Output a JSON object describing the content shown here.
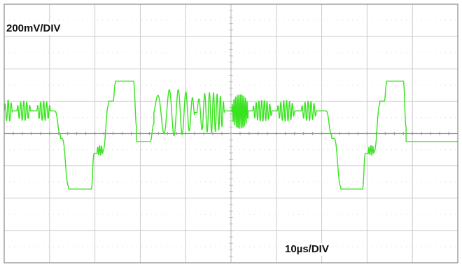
{
  "chart_data": {
    "type": "line",
    "title": "",
    "xlabel": "",
    "ylabel": "",
    "vertical_scale_label": "200mV/DIV",
    "horizontal_scale_label": "10µs/DIV",
    "grid": true,
    "divisions": {
      "x": 10,
      "y": 8
    },
    "trace_color": "#39e31f",
    "grid_color": "#c9c9c9",
    "border_color": "#8a8a8a",
    "xlim_div": [
      0,
      10
    ],
    "ylim_div": [
      -4,
      4
    ],
    "series": [
      {
        "segments_div": [
          {
            "kind": "burst",
            "x0": 0.0,
            "x1": 0.18,
            "base": 0.7,
            "amp": 0.33,
            "cycles": 2.6
          },
          {
            "kind": "hold",
            "x0": 0.18,
            "x1": 0.28,
            "y": 0.7
          },
          {
            "kind": "burst",
            "x0": 0.28,
            "x1": 0.58,
            "base": 0.7,
            "amp": 0.3,
            "cycles": 4.5
          },
          {
            "kind": "hold",
            "x0": 0.58,
            "x1": 0.72,
            "y": 0.7
          },
          {
            "kind": "burst",
            "x0": 0.72,
            "x1": 1.02,
            "base": 0.7,
            "amp": 0.3,
            "cycles": 4.5
          },
          {
            "kind": "hold",
            "x0": 1.02,
            "x1": 1.12,
            "y": 0.7
          },
          {
            "kind": "ramp",
            "x0": 1.12,
            "x1": 1.24,
            "y0": 0.7,
            "y1": -0.05
          },
          {
            "kind": "hold",
            "x0": 1.24,
            "x1": 1.28,
            "y": -0.15
          },
          {
            "kind": "ramp",
            "x0": 1.28,
            "x1": 1.42,
            "y0": -0.15,
            "y1": -1.65
          },
          {
            "kind": "hold",
            "x0": 1.42,
            "x1": 1.92,
            "y": -1.72
          },
          {
            "kind": "ramp",
            "x0": 1.92,
            "x1": 1.98,
            "y0": -1.72,
            "y1": -0.62
          },
          {
            "kind": "hold",
            "x0": 1.98,
            "x1": 2.05,
            "y": -0.62
          },
          {
            "kind": "burst",
            "x0": 2.05,
            "x1": 2.18,
            "base": -0.52,
            "amp": 0.15,
            "cycles": 3.0
          },
          {
            "kind": "ramp",
            "x0": 2.18,
            "x1": 2.3,
            "y0": -0.55,
            "y1": 0.9
          },
          {
            "kind": "hold",
            "x0": 2.3,
            "x1": 2.4,
            "y": 1.0
          },
          {
            "kind": "ramp",
            "x0": 2.4,
            "x1": 2.45,
            "y0": 1.0,
            "y1": 1.55
          },
          {
            "kind": "hold",
            "x0": 2.45,
            "x1": 2.85,
            "y": 1.62
          },
          {
            "kind": "ramp",
            "x0": 2.85,
            "x1": 2.92,
            "y0": 1.62,
            "y1": 0.2
          },
          {
            "kind": "hold",
            "x0": 2.92,
            "x1": 3.22,
            "y": -0.25
          },
          {
            "kind": "ramp",
            "x0": 3.22,
            "x1": 3.3,
            "y0": -0.25,
            "y1": 0.3
          },
          {
            "kind": "chirp",
            "x0": 3.3,
            "x1": 4.2,
            "base": 0.65,
            "amp": 0.72,
            "cycles": 4.6
          },
          {
            "kind": "chirp",
            "x0": 4.25,
            "x1": 4.85,
            "base": 0.65,
            "amp": 0.62,
            "cycles": 6.5
          },
          {
            "kind": "hold",
            "x0": 4.85,
            "x1": 5.02,
            "y": 0.7
          },
          {
            "kind": "burst",
            "x0": 5.02,
            "x1": 5.38,
            "base": 0.68,
            "amp": 0.52,
            "cycles": 10.0
          },
          {
            "kind": "hold",
            "x0": 5.38,
            "x1": 5.48,
            "y": 0.7
          },
          {
            "kind": "burst",
            "x0": 5.48,
            "x1": 5.9,
            "base": 0.7,
            "amp": 0.32,
            "cycles": 7.0
          },
          {
            "kind": "hold",
            "x0": 5.9,
            "x1": 6.02,
            "y": 0.7
          },
          {
            "kind": "burst",
            "x0": 6.02,
            "x1": 6.4,
            "base": 0.7,
            "amp": 0.32,
            "cycles": 6.0
          },
          {
            "kind": "hold",
            "x0": 6.4,
            "x1": 6.55,
            "y": 0.7
          },
          {
            "kind": "burst",
            "x0": 6.55,
            "x1": 6.88,
            "base": 0.7,
            "amp": 0.3,
            "cycles": 5.0
          },
          {
            "kind": "hold",
            "x0": 6.88,
            "x1": 7.1,
            "y": 0.7
          },
          {
            "kind": "ramp",
            "x0": 7.1,
            "x1": 7.22,
            "y0": 0.7,
            "y1": -0.05
          },
          {
            "kind": "hold",
            "x0": 7.22,
            "x1": 7.28,
            "y": -0.15
          },
          {
            "kind": "ramp",
            "x0": 7.28,
            "x1": 7.42,
            "y0": -0.15,
            "y1": -1.65
          },
          {
            "kind": "hold",
            "x0": 7.42,
            "x1": 7.9,
            "y": -1.72
          },
          {
            "kind": "ramp",
            "x0": 7.9,
            "x1": 7.96,
            "y0": -1.72,
            "y1": -0.62
          },
          {
            "kind": "hold",
            "x0": 7.96,
            "x1": 8.03,
            "y": -0.62
          },
          {
            "kind": "burst",
            "x0": 8.03,
            "x1": 8.16,
            "base": -0.52,
            "amp": 0.15,
            "cycles": 3.0
          },
          {
            "kind": "ramp",
            "x0": 8.16,
            "x1": 8.28,
            "y0": -0.55,
            "y1": 0.9
          },
          {
            "kind": "hold",
            "x0": 8.28,
            "x1": 8.38,
            "y": 1.0
          },
          {
            "kind": "ramp",
            "x0": 8.38,
            "x1": 8.43,
            "y0": 1.0,
            "y1": 1.55
          },
          {
            "kind": "hold",
            "x0": 8.43,
            "x1": 8.8,
            "y": 1.62
          },
          {
            "kind": "ramp",
            "x0": 8.8,
            "x1": 8.86,
            "y0": 1.62,
            "y1": 0.2
          },
          {
            "kind": "hold",
            "x0": 8.86,
            "x1": 10.0,
            "y": -0.25
          }
        ]
      }
    ]
  }
}
